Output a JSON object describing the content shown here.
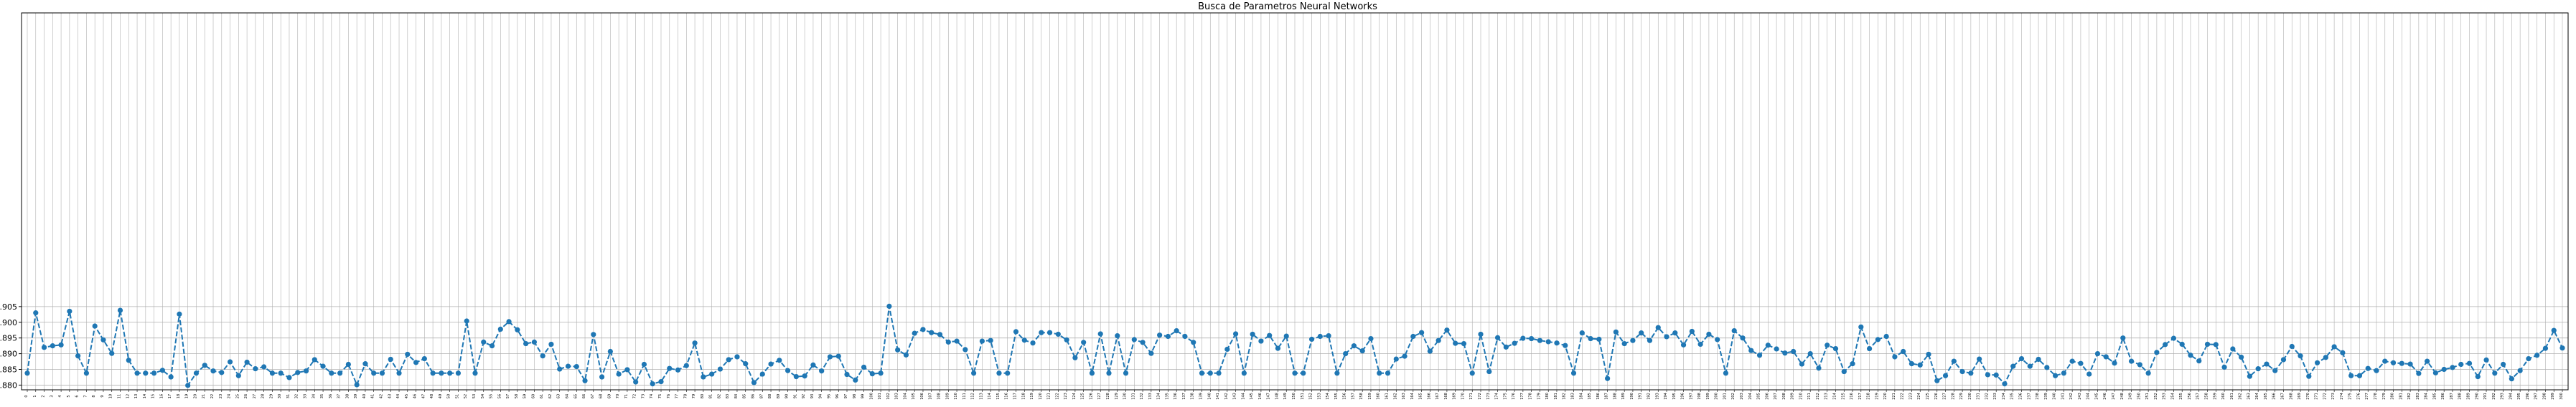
{
  "chart_data": {
    "type": "line",
    "title": "Busca de Parametros Neural Networks",
    "xlabel": "",
    "ylabel": "",
    "ylim": [
      0.8785,
      0.9985
    ],
    "yticks": [
      "0.880",
      "0.885",
      "0.890",
      "0.895",
      "0.900",
      "0.905"
    ],
    "grid": true,
    "line_style": "dashed",
    "marker": "circle",
    "colors": {
      "series": "#1f77b4",
      "grid": "#b0b0b0",
      "axis": "#000000"
    },
    "series": [
      {
        "values": [
          0.8838,
          0.903,
          0.892,
          0.8925,
          0.8928,
          0.9035,
          0.8893,
          0.8838,
          0.8988,
          0.8944,
          0.8901,
          0.9038,
          0.8879,
          0.8838,
          0.8838,
          0.8838,
          0.8847,
          0.8826,
          0.9026,
          0.8799,
          0.8838,
          0.8863,
          0.8845,
          0.884,
          0.8874,
          0.883,
          0.8873,
          0.8852,
          0.8858,
          0.8838,
          0.8838,
          0.8824,
          0.884,
          0.8845,
          0.8881,
          0.886,
          0.8838,
          0.8838,
          0.8866,
          0.8801,
          0.8868,
          0.8838,
          0.8838,
          0.8882,
          0.8838,
          0.8898,
          0.8872,
          0.8884,
          0.8838,
          0.8838,
          0.8838,
          0.8838,
          0.9004,
          0.8838,
          0.8937,
          0.8925,
          0.8978,
          0.9002,
          0.8976,
          0.8932,
          0.8937,
          0.8893,
          0.893,
          0.8851,
          0.886,
          0.8859,
          0.8814,
          0.8961,
          0.8826,
          0.8907,
          0.8835,
          0.8849,
          0.881,
          0.8866,
          0.8804,
          0.8811,
          0.8853,
          0.8848,
          0.8862,
          0.8934,
          0.8826,
          0.8835,
          0.8851,
          0.8881,
          0.889,
          0.8868,
          0.8808,
          0.8835,
          0.8867,
          0.8879,
          0.8846,
          0.8827,
          0.8829,
          0.8864,
          0.8845,
          0.889,
          0.8892,
          0.8834,
          0.8816,
          0.8857,
          0.8836,
          0.8838,
          0.9051,
          0.8912,
          0.8896,
          0.8965,
          0.8977,
          0.8967,
          0.8961,
          0.8937,
          0.894,
          0.8913,
          0.8838,
          0.894,
          0.8942,
          0.8838,
          0.8838,
          0.897,
          0.8943,
          0.8934,
          0.8967,
          0.8967,
          0.8962,
          0.8944,
          0.8887,
          0.8936,
          0.8838,
          0.8963,
          0.8838,
          0.8957,
          0.8838,
          0.8945,
          0.8936,
          0.8901,
          0.8959,
          0.8955,
          0.8973,
          0.8955,
          0.8936,
          0.8838,
          0.8838,
          0.8838,
          0.8914,
          0.8963,
          0.8838,
          0.8962,
          0.894,
          0.8958,
          0.8917,
          0.8956,
          0.8838,
          0.8838,
          0.8946,
          0.8955,
          0.8957,
          0.8838,
          0.89,
          0.8925,
          0.8909,
          0.8948,
          0.8838,
          0.8838,
          0.8883,
          0.8892,
          0.8955,
          0.8967,
          0.8908,
          0.8942,
          0.8975,
          0.8933,
          0.8932,
          0.8838,
          0.8962,
          0.8843,
          0.8951,
          0.8921,
          0.8933,
          0.8949,
          0.8948,
          0.8942,
          0.8938,
          0.8934,
          0.8926,
          0.8838,
          0.8966,
          0.8948,
          0.8946,
          0.8821,
          0.8969,
          0.8932,
          0.8942,
          0.8966,
          0.8942,
          0.8983,
          0.8954,
          0.8966,
          0.8928,
          0.8971,
          0.893,
          0.8962,
          0.8945,
          0.8838,
          0.8973,
          0.895,
          0.891,
          0.8895,
          0.8927,
          0.8915,
          0.8902,
          0.8907,
          0.8867,
          0.89,
          0.8854,
          0.8927,
          0.8916,
          0.8843,
          0.8868,
          0.8985,
          0.8916,
          0.8945,
          0.8955,
          0.889,
          0.8907,
          0.8868,
          0.8864,
          0.8898,
          0.8814,
          0.883,
          0.8876,
          0.8843,
          0.8838,
          0.8883,
          0.8833,
          0.8832,
          0.8804,
          0.886,
          0.8884,
          0.886,
          0.8882,
          0.8856,
          0.883,
          0.8838,
          0.8876,
          0.8869,
          0.8835,
          0.89,
          0.889,
          0.887,
          0.895,
          0.8876,
          0.8865,
          0.8838,
          0.8904,
          0.8929,
          0.8949,
          0.893,
          0.8895,
          0.8877,
          0.893,
          0.8929,
          0.8857,
          0.8915,
          0.8889,
          0.8828,
          0.8852,
          0.8867,
          0.8846,
          0.8881,
          0.8923,
          0.8893,
          0.8828,
          0.8871,
          0.8888,
          0.8922,
          0.8903,
          0.883,
          0.883,
          0.8853,
          0.8846,
          0.8876,
          0.8871,
          0.8869,
          0.8867,
          0.8837,
          0.8876,
          0.8839,
          0.885,
          0.8856,
          0.8866,
          0.8869,
          0.8827,
          0.888,
          0.8838,
          0.8866,
          0.882,
          0.8846,
          0.8884,
          0.8895,
          0.8917,
          0.8974,
          0.8918
        ]
      }
    ]
  }
}
